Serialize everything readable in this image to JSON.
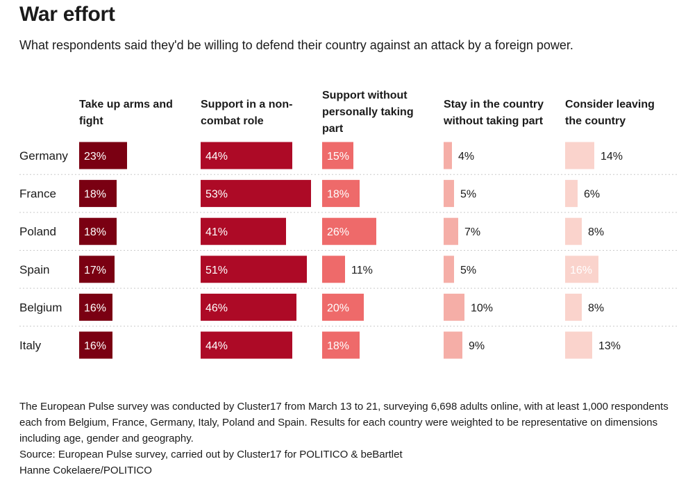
{
  "header": {
    "title": "War effort",
    "subtitle": "What respondents said they'd be willing to defend their country against an attack by a foreign power."
  },
  "chart_data": {
    "type": "table",
    "title": "War effort",
    "columns": [
      {
        "label_lines": [
          "Take up arms and",
          "fight"
        ],
        "color": "#7a0012"
      },
      {
        "label_lines": [
          "Support in a non-",
          "combat role"
        ],
        "color": "#ad0a26"
      },
      {
        "label_lines": [
          "Support without",
          "personally taking",
          "part"
        ],
        "color": "#ee6a6a"
      },
      {
        "label_lines": [
          "Stay in the country",
          "without taking part"
        ],
        "color": "#f5aea7"
      },
      {
        "label_lines": [
          "Consider leaving",
          "the country"
        ],
        "color": "#fad3cc"
      }
    ],
    "rows": [
      {
        "country": "Germany",
        "values": [
          23,
          44,
          15,
          4,
          14
        ]
      },
      {
        "country": "France",
        "values": [
          18,
          53,
          18,
          5,
          6
        ]
      },
      {
        "country": "Poland",
        "values": [
          18,
          41,
          26,
          7,
          8
        ]
      },
      {
        "country": "Spain",
        "values": [
          17,
          51,
          11,
          5,
          16
        ]
      },
      {
        "country": "Belgium",
        "values": [
          16,
          46,
          20,
          10,
          8
        ]
      },
      {
        "country": "Italy",
        "values": [
          16,
          44,
          18,
          9,
          13
        ]
      }
    ],
    "value_suffix": "%"
  },
  "footer": {
    "note": "The European Pulse survey was conducted by Cluster17 from March 13 to 21, surveying 6,698 adults online, with at least 1,000 respondents each from Belgium, France, Germany, Italy, Poland and Spain. Results for each country were weighted to be representative on dimensions including age, gender and geography.",
    "source": "Source: European Pulse survey, carried out by Cluster17 for POLITICO & beBartlet",
    "credit": "Hanne Cokelaere/POLITICO"
  }
}
